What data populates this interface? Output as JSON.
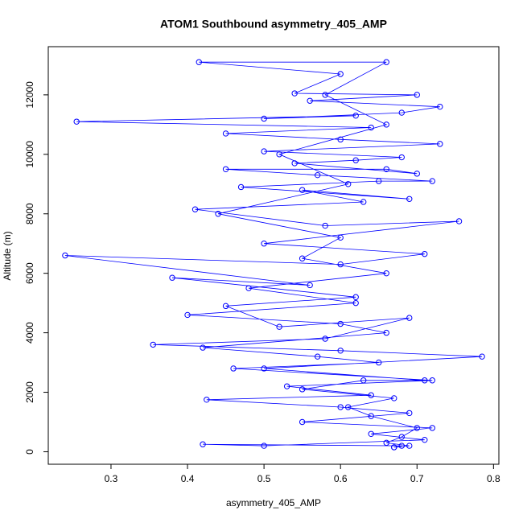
{
  "chart_data": {
    "type": "line",
    "title": "ATOM1 Southbound asymmetry_405_AMP",
    "x_label": "asymmetry_405_AMP",
    "y_label": "Altitude (m)",
    "xlim": [
      0.218,
      0.807
    ],
    "xticks": [
      0.3,
      0.4,
      0.5,
      0.6,
      0.7,
      0.8
    ],
    "ylim": [
      -420,
      13620
    ],
    "yticks": [
      0,
      2000,
      4000,
      6000,
      8000,
      10000,
      12000
    ],
    "series": [
      {
        "color": "#0000ff",
        "x": [
          0.67,
          0.69,
          0.66,
          0.68,
          0.7,
          0.64,
          0.61,
          0.67,
          0.55,
          0.63,
          0.71,
          0.5,
          0.785,
          0.6,
          0.355,
          0.58,
          0.69,
          0.52,
          0.45,
          0.62,
          0.38,
          0.56,
          0.24,
          0.6,
          0.71,
          0.5,
          0.755,
          0.58,
          0.41,
          0.63,
          0.55,
          0.69,
          0.47,
          0.65,
          0.72,
          0.57,
          0.45,
          0.66,
          0.7,
          0.54,
          0.62,
          0.68,
          0.5,
          0.73,
          0.6,
          0.45,
          0.64,
          0.255,
          0.62,
          0.5,
          0.68,
          0.73,
          0.56,
          0.7,
          0.54,
          0.6,
          0.415,
          0.66,
          0.58,
          0.66,
          0.52,
          0.61,
          0.44,
          0.6,
          0.55,
          0.66,
          0.48,
          0.62,
          0.4,
          0.6,
          0.66,
          0.42,
          0.57,
          0.65,
          0.46,
          0.72,
          0.53,
          0.64,
          0.425,
          0.6,
          0.69,
          0.55,
          0.72,
          0.64,
          0.71,
          0.5,
          0.42,
          0.68,
          0.67
        ],
        "values": [
          150,
          200,
          300,
          500,
          800,
          1200,
          1500,
          1800,
          2100,
          2400,
          2400,
          2800,
          3200,
          3400,
          3600,
          3800,
          4500,
          4200,
          4900,
          5200,
          5850,
          5600,
          6600,
          6300,
          6650,
          7000,
          7750,
          7600,
          8150,
          8400,
          8800,
          8500,
          8900,
          9100,
          9100,
          9300,
          9500,
          9500,
          9350,
          9700,
          9800,
          9900,
          10100,
          10350,
          10500,
          10700,
          10900,
          11100,
          11300,
          11200,
          11400,
          11600,
          11800,
          12000,
          12050,
          12700,
          13100,
          13100,
          12000,
          11000,
          10000,
          9000,
          8000,
          7200,
          6500,
          6000,
          5500,
          5000,
          4600,
          4300,
          4000,
          3500,
          3200,
          3000,
          2800,
          2400,
          2200,
          1900,
          1750,
          1500,
          1300,
          1000,
          800,
          600,
          400,
          200,
          250,
          200,
          150
        ]
      }
    ]
  }
}
